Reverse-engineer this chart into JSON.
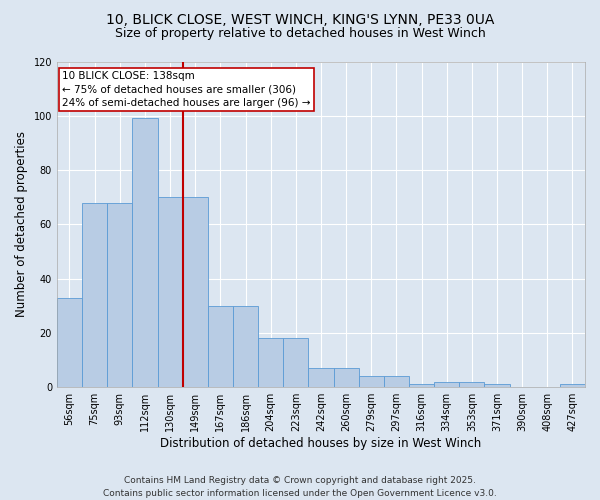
{
  "title_line1": "10, BLICK CLOSE, WEST WINCH, KING'S LYNN, PE33 0UA",
  "title_line2": "Size of property relative to detached houses in West Winch",
  "xlabel": "Distribution of detached houses by size in West Winch",
  "ylabel": "Number of detached properties",
  "categories": [
    "56sqm",
    "75sqm",
    "93sqm",
    "112sqm",
    "130sqm",
    "149sqm",
    "167sqm",
    "186sqm",
    "204sqm",
    "223sqm",
    "242sqm",
    "260sqm",
    "279sqm",
    "297sqm",
    "316sqm",
    "334sqm",
    "353sqm",
    "371sqm",
    "390sqm",
    "408sqm",
    "427sqm"
  ],
  "values": [
    33,
    68,
    68,
    99,
    70,
    70,
    30,
    30,
    18,
    18,
    7,
    7,
    4,
    4,
    1,
    2,
    2,
    1,
    0,
    0,
    1
  ],
  "bar_color": "#b8cce4",
  "bar_edge_color": "#5b9bd5",
  "vline_x_index": 4.5,
  "vline_color": "#c00000",
  "annotation_text": "10 BLICK CLOSE: 138sqm\n← 75% of detached houses are smaller (306)\n24% of semi-detached houses are larger (96) →",
  "annotation_box_color": "white",
  "annotation_box_edge": "#c00000",
  "ylim": [
    0,
    120
  ],
  "yticks": [
    0,
    20,
    40,
    60,
    80,
    100,
    120
  ],
  "bg_color": "#dce6f1",
  "grid_color": "white",
  "footer_line1": "Contains HM Land Registry data © Crown copyright and database right 2025.",
  "footer_line2": "Contains public sector information licensed under the Open Government Licence v3.0.",
  "title_fontsize": 10,
  "subtitle_fontsize": 9,
  "axis_label_fontsize": 8.5,
  "tick_fontsize": 7,
  "annotation_fontsize": 7.5,
  "footer_fontsize": 6.5
}
